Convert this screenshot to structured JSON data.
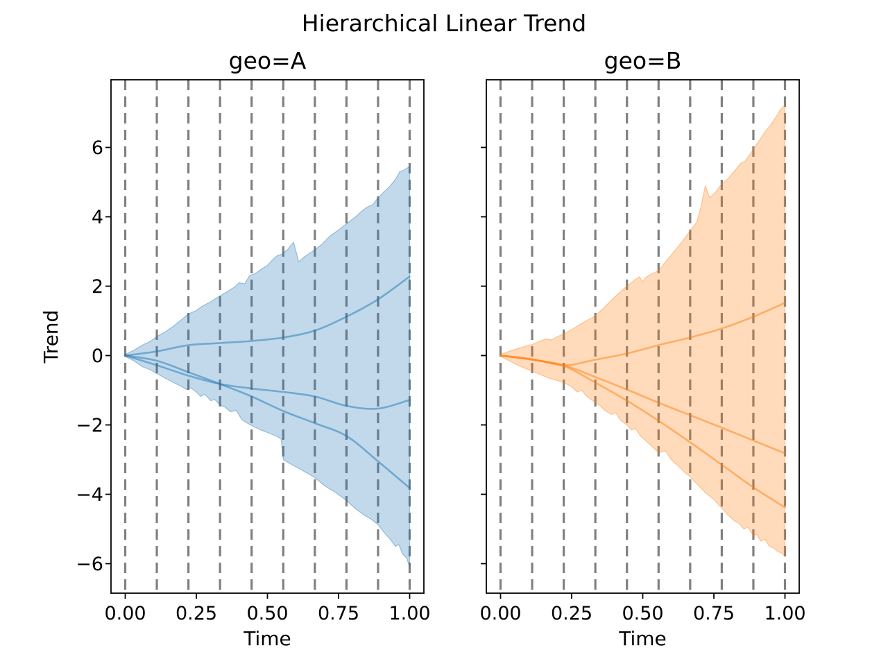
{
  "chart_data": {
    "type": "area",
    "suptitle": "Hierarchical Linear Trend",
    "xlabel": "Time",
    "ylabel": "Trend",
    "xlim": [
      -0.05,
      1.05
    ],
    "ylim": [
      -6.85,
      7.95
    ],
    "xticks": [
      0.0,
      0.25,
      0.5,
      0.75,
      1.0
    ],
    "xtick_labels": [
      "0.00",
      "0.25",
      "0.50",
      "0.75",
      "1.00"
    ],
    "yticks": [
      -6,
      -4,
      -2,
      0,
      2,
      4,
      6
    ],
    "ytick_labels": [
      "−6",
      "−4",
      "−2",
      "0",
      "2",
      "4",
      "6"
    ],
    "grid_x": [
      0,
      0.1111,
      0.2222,
      0.3333,
      0.4444,
      0.5556,
      0.6667,
      0.7778,
      0.8889,
      1.0
    ],
    "grid_color": "#808080",
    "spine_color": "#000000",
    "band_fill_opacity": 0.28,
    "line_opacity": 0.5,
    "lines_x": [
      0,
      0.1111,
      0.2222,
      0.3333,
      0.4444,
      0.5556,
      0.6667,
      0.7778,
      0.8889,
      1.0
    ],
    "panels": [
      {
        "title": "geo=A",
        "color": "#1f77b4",
        "band_upper": [
          [
            0,
            0.03
          ],
          [
            0.03,
            0.15
          ],
          [
            0.06,
            0.3
          ],
          [
            0.09,
            0.42
          ],
          [
            0.111,
            0.55
          ],
          [
            0.14,
            0.68
          ],
          [
            0.17,
            0.85
          ],
          [
            0.2,
            1.05
          ],
          [
            0.222,
            1.2
          ],
          [
            0.25,
            1.3
          ],
          [
            0.27,
            1.42
          ],
          [
            0.3,
            1.55
          ],
          [
            0.333,
            1.72
          ],
          [
            0.36,
            1.85
          ],
          [
            0.385,
            1.98
          ],
          [
            0.4,
            2.1
          ],
          [
            0.42,
            2.07
          ],
          [
            0.437,
            2.3
          ],
          [
            0.46,
            2.38
          ],
          [
            0.48,
            2.5
          ],
          [
            0.5,
            2.6
          ],
          [
            0.52,
            2.78
          ],
          [
            0.535,
            2.88
          ],
          [
            0.55,
            2.92
          ],
          [
            0.57,
            3.05
          ],
          [
            0.592,
            3.27
          ],
          [
            0.61,
            2.7
          ],
          [
            0.63,
            2.85
          ],
          [
            0.667,
            3.05
          ],
          [
            0.69,
            3.2
          ],
          [
            0.72,
            3.45
          ],
          [
            0.75,
            3.62
          ],
          [
            0.778,
            3.8
          ],
          [
            0.81,
            4.0
          ],
          [
            0.83,
            4.15
          ],
          [
            0.85,
            4.28
          ],
          [
            0.87,
            4.35
          ],
          [
            0.889,
            4.55
          ],
          [
            0.91,
            4.72
          ],
          [
            0.93,
            4.88
          ],
          [
            0.95,
            5.08
          ],
          [
            0.965,
            5.3
          ],
          [
            0.98,
            5.35
          ],
          [
            1,
            5.45
          ]
        ],
        "band_lower": [
          [
            0,
            -0.03
          ],
          [
            0.03,
            -0.15
          ],
          [
            0.06,
            -0.32
          ],
          [
            0.09,
            -0.42
          ],
          [
            0.111,
            -0.52
          ],
          [
            0.14,
            -0.65
          ],
          [
            0.17,
            -0.78
          ],
          [
            0.2,
            -0.9
          ],
          [
            0.215,
            -0.98
          ],
          [
            0.23,
            -0.93
          ],
          [
            0.25,
            -1.05
          ],
          [
            0.265,
            -1.18
          ],
          [
            0.28,
            -1.12
          ],
          [
            0.3,
            -1.3
          ],
          [
            0.315,
            -1.27
          ],
          [
            0.333,
            -1.43
          ],
          [
            0.35,
            -1.48
          ],
          [
            0.37,
            -1.62
          ],
          [
            0.39,
            -1.58
          ],
          [
            0.41,
            -1.85
          ],
          [
            0.44,
            -2.0
          ],
          [
            0.47,
            -2.12
          ],
          [
            0.5,
            -2.22
          ],
          [
            0.53,
            -2.32
          ],
          [
            0.548,
            -2.4
          ],
          [
            0.556,
            -3.0
          ],
          [
            0.58,
            -3.12
          ],
          [
            0.62,
            -3.3
          ],
          [
            0.667,
            -3.52
          ],
          [
            0.7,
            -3.75
          ],
          [
            0.74,
            -3.95
          ],
          [
            0.778,
            -4.18
          ],
          [
            0.81,
            -4.42
          ],
          [
            0.84,
            -4.6
          ],
          [
            0.865,
            -4.72
          ],
          [
            0.889,
            -4.88
          ],
          [
            0.91,
            -5.1
          ],
          [
            0.93,
            -5.28
          ],
          [
            0.95,
            -5.5
          ],
          [
            0.962,
            -5.45
          ],
          [
            0.975,
            -5.72
          ],
          [
            0.99,
            -5.85
          ],
          [
            1,
            -6.1
          ]
        ],
        "lines": [
          [
            0,
            0.12,
            0.3,
            0.36,
            0.42,
            0.52,
            0.72,
            1.12,
            1.62,
            2.28
          ],
          [
            0,
            -0.28,
            -0.58,
            -0.82,
            -0.95,
            -1.05,
            -1.18,
            -1.45,
            -1.53,
            -1.28
          ],
          [
            0,
            -0.15,
            -0.48,
            -0.82,
            -1.18,
            -1.6,
            -1.95,
            -2.32,
            -3.05,
            -3.82
          ]
        ]
      },
      {
        "title": "geo=B",
        "color": "#ff7f0e",
        "band_upper": [
          [
            0,
            0.03
          ],
          [
            0.03,
            0.12
          ],
          [
            0.06,
            0.2
          ],
          [
            0.09,
            0.27
          ],
          [
            0.111,
            0.32
          ],
          [
            0.14,
            0.42
          ],
          [
            0.16,
            0.48
          ],
          [
            0.18,
            0.45
          ],
          [
            0.2,
            0.55
          ],
          [
            0.222,
            0.62
          ],
          [
            0.25,
            0.75
          ],
          [
            0.28,
            0.9
          ],
          [
            0.3,
            1.0
          ],
          [
            0.32,
            1.08
          ],
          [
            0.333,
            1.15
          ],
          [
            0.36,
            1.35
          ],
          [
            0.39,
            1.6
          ],
          [
            0.41,
            1.75
          ],
          [
            0.43,
            1.9
          ],
          [
            0.444,
            2.0
          ],
          [
            0.46,
            2.1
          ],
          [
            0.475,
            2.2
          ],
          [
            0.488,
            2.27
          ],
          [
            0.5,
            2.12
          ],
          [
            0.51,
            2.25
          ],
          [
            0.53,
            2.35
          ],
          [
            0.556,
            2.45
          ],
          [
            0.58,
            2.7
          ],
          [
            0.61,
            3.0
          ],
          [
            0.64,
            3.3
          ],
          [
            0.667,
            3.6
          ],
          [
            0.69,
            3.85
          ],
          [
            0.705,
            4.3
          ],
          [
            0.72,
            4.9
          ],
          [
            0.735,
            4.55
          ],
          [
            0.755,
            4.7
          ],
          [
            0.778,
            4.95
          ],
          [
            0.8,
            5.1
          ],
          [
            0.82,
            5.3
          ],
          [
            0.845,
            5.55
          ],
          [
            0.86,
            5.6
          ],
          [
            0.889,
            5.95
          ],
          [
            0.91,
            6.2
          ],
          [
            0.93,
            6.45
          ],
          [
            0.95,
            6.65
          ],
          [
            0.97,
            6.9
          ],
          [
            0.985,
            7.1
          ],
          [
            1,
            7.22
          ]
        ],
        "band_lower": [
          [
            0,
            -0.03
          ],
          [
            0.03,
            -0.15
          ],
          [
            0.06,
            -0.28
          ],
          [
            0.09,
            -0.38
          ],
          [
            0.111,
            -0.45
          ],
          [
            0.14,
            -0.55
          ],
          [
            0.17,
            -0.65
          ],
          [
            0.2,
            -0.72
          ],
          [
            0.222,
            -0.78
          ],
          [
            0.25,
            -0.9
          ],
          [
            0.27,
            -1.05
          ],
          [
            0.285,
            -1.0
          ],
          [
            0.3,
            -1.15
          ],
          [
            0.32,
            -1.28
          ],
          [
            0.333,
            -1.35
          ],
          [
            0.35,
            -1.45
          ],
          [
            0.37,
            -1.6
          ],
          [
            0.39,
            -1.7
          ],
          [
            0.405,
            -1.65
          ],
          [
            0.42,
            -1.85
          ],
          [
            0.444,
            -2.0
          ],
          [
            0.46,
            -2.15
          ],
          [
            0.475,
            -2.1
          ],
          [
            0.49,
            -2.3
          ],
          [
            0.51,
            -2.45
          ],
          [
            0.53,
            -2.6
          ],
          [
            0.556,
            -2.8
          ],
          [
            0.58,
            -2.75
          ],
          [
            0.6,
            -3.0
          ],
          [
            0.62,
            -3.15
          ],
          [
            0.645,
            -3.35
          ],
          [
            0.667,
            -3.5
          ],
          [
            0.69,
            -3.7
          ],
          [
            0.72,
            -3.95
          ],
          [
            0.75,
            -4.15
          ],
          [
            0.778,
            -4.4
          ],
          [
            0.8,
            -4.6
          ],
          [
            0.82,
            -4.75
          ],
          [
            0.84,
            -4.85
          ],
          [
            0.855,
            -5.0
          ],
          [
            0.87,
            -4.95
          ],
          [
            0.889,
            -5.2
          ],
          [
            0.9,
            -5.15
          ],
          [
            0.915,
            -5.35
          ],
          [
            0.93,
            -5.3
          ],
          [
            0.945,
            -5.5
          ],
          [
            0.96,
            -5.55
          ],
          [
            0.975,
            -5.65
          ],
          [
            0.99,
            -5.7
          ],
          [
            1,
            -5.8
          ]
        ],
        "lines": [
          [
            0,
            -0.1,
            -0.28,
            -0.12,
            0.06,
            0.3,
            0.52,
            0.78,
            1.12,
            1.52
          ],
          [
            0,
            -0.12,
            -0.28,
            -0.62,
            -0.98,
            -1.36,
            -1.72,
            -2.08,
            -2.45,
            -2.82
          ],
          [
            0,
            -0.12,
            -0.3,
            -0.78,
            -1.3,
            -1.88,
            -2.5,
            -3.15,
            -3.8,
            -4.38
          ]
        ]
      }
    ]
  }
}
